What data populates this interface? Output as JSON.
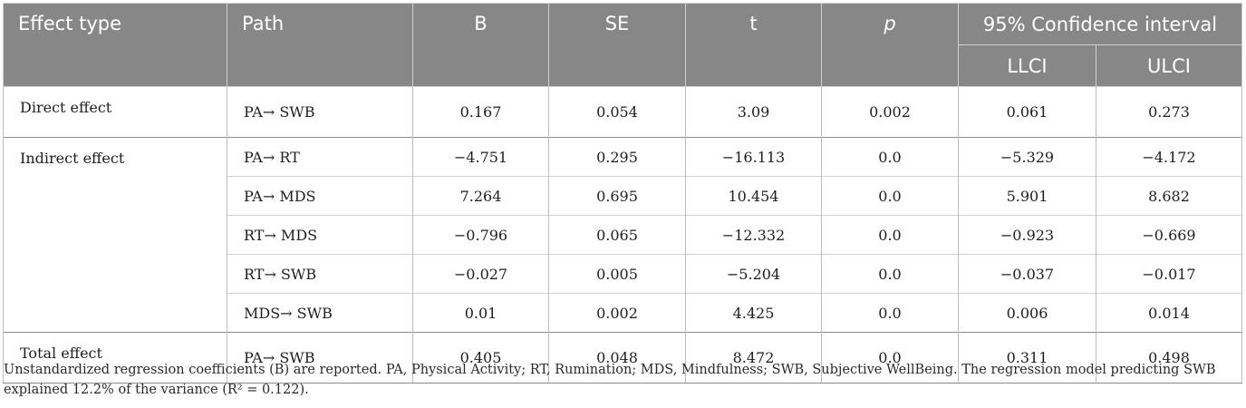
{
  "headers": {
    "effect_type": "Effect type",
    "path": "Path",
    "b": "B",
    "se": "SE",
    "t": "t",
    "p": "p",
    "ci": "95% Confidence interval",
    "llci": "LLCI",
    "ulci": "ULCI"
  },
  "rows": [
    {
      "effect": "Direct effect",
      "path": "PA→ SWB",
      "b": "0.167",
      "se": "0.054",
      "t": "3.09",
      "p": "0.002",
      "llci": "0.061",
      "ulci": "0.273"
    },
    {
      "effect": "Indirect effect",
      "path": "PA→ RT",
      "b": "−4.751",
      "se": "0.295",
      "t": "−16.113",
      "p": "0.0",
      "llci": "−5.329",
      "ulci": "−4.172"
    },
    {
      "effect": "",
      "path": "PA→ MDS",
      "b": "7.264",
      "se": "0.695",
      "t": "10.454",
      "p": "0.0",
      "llci": "5.901",
      "ulci": "8.682"
    },
    {
      "effect": "",
      "path": "RT→ MDS",
      "b": "−0.796",
      "se": "0.065",
      "t": "−12.332",
      "p": "0.0",
      "llci": "−0.923",
      "ulci": "−0.669"
    },
    {
      "effect": "",
      "path": "RT→ SWB",
      "b": "−0.027",
      "se": "0.005",
      "t": "−5.204",
      "p": "0.0",
      "llci": "−0.037",
      "ulci": "−0.017"
    },
    {
      "effect": "",
      "path": "MDS→ SWB",
      "b": "0.01",
      "se": "0.002",
      "t": "4.425",
      "p": "0.0",
      "llci": "0.006",
      "ulci": "0.014"
    },
    {
      "effect": "Total effect",
      "path": "PA→ SWB",
      "b": "0.405",
      "se": "0.048",
      "t": "8.472",
      "p": "0.0",
      "llci": "0.311",
      "ulci": "0.498"
    }
  ],
  "footnote": "Unstandardized regression coefficients (B) are reported. PA, Physical Activity; RT, Rumination; MDS, Mindfulness; SWB, Subjective WellBeing. The regression model predicting SWB explained 12.2% of the variance (R² = 0.122).",
  "colors": {
    "header_bg": "#878787",
    "header_text": "#ffffff",
    "body_text": "#1e1e1e"
  }
}
